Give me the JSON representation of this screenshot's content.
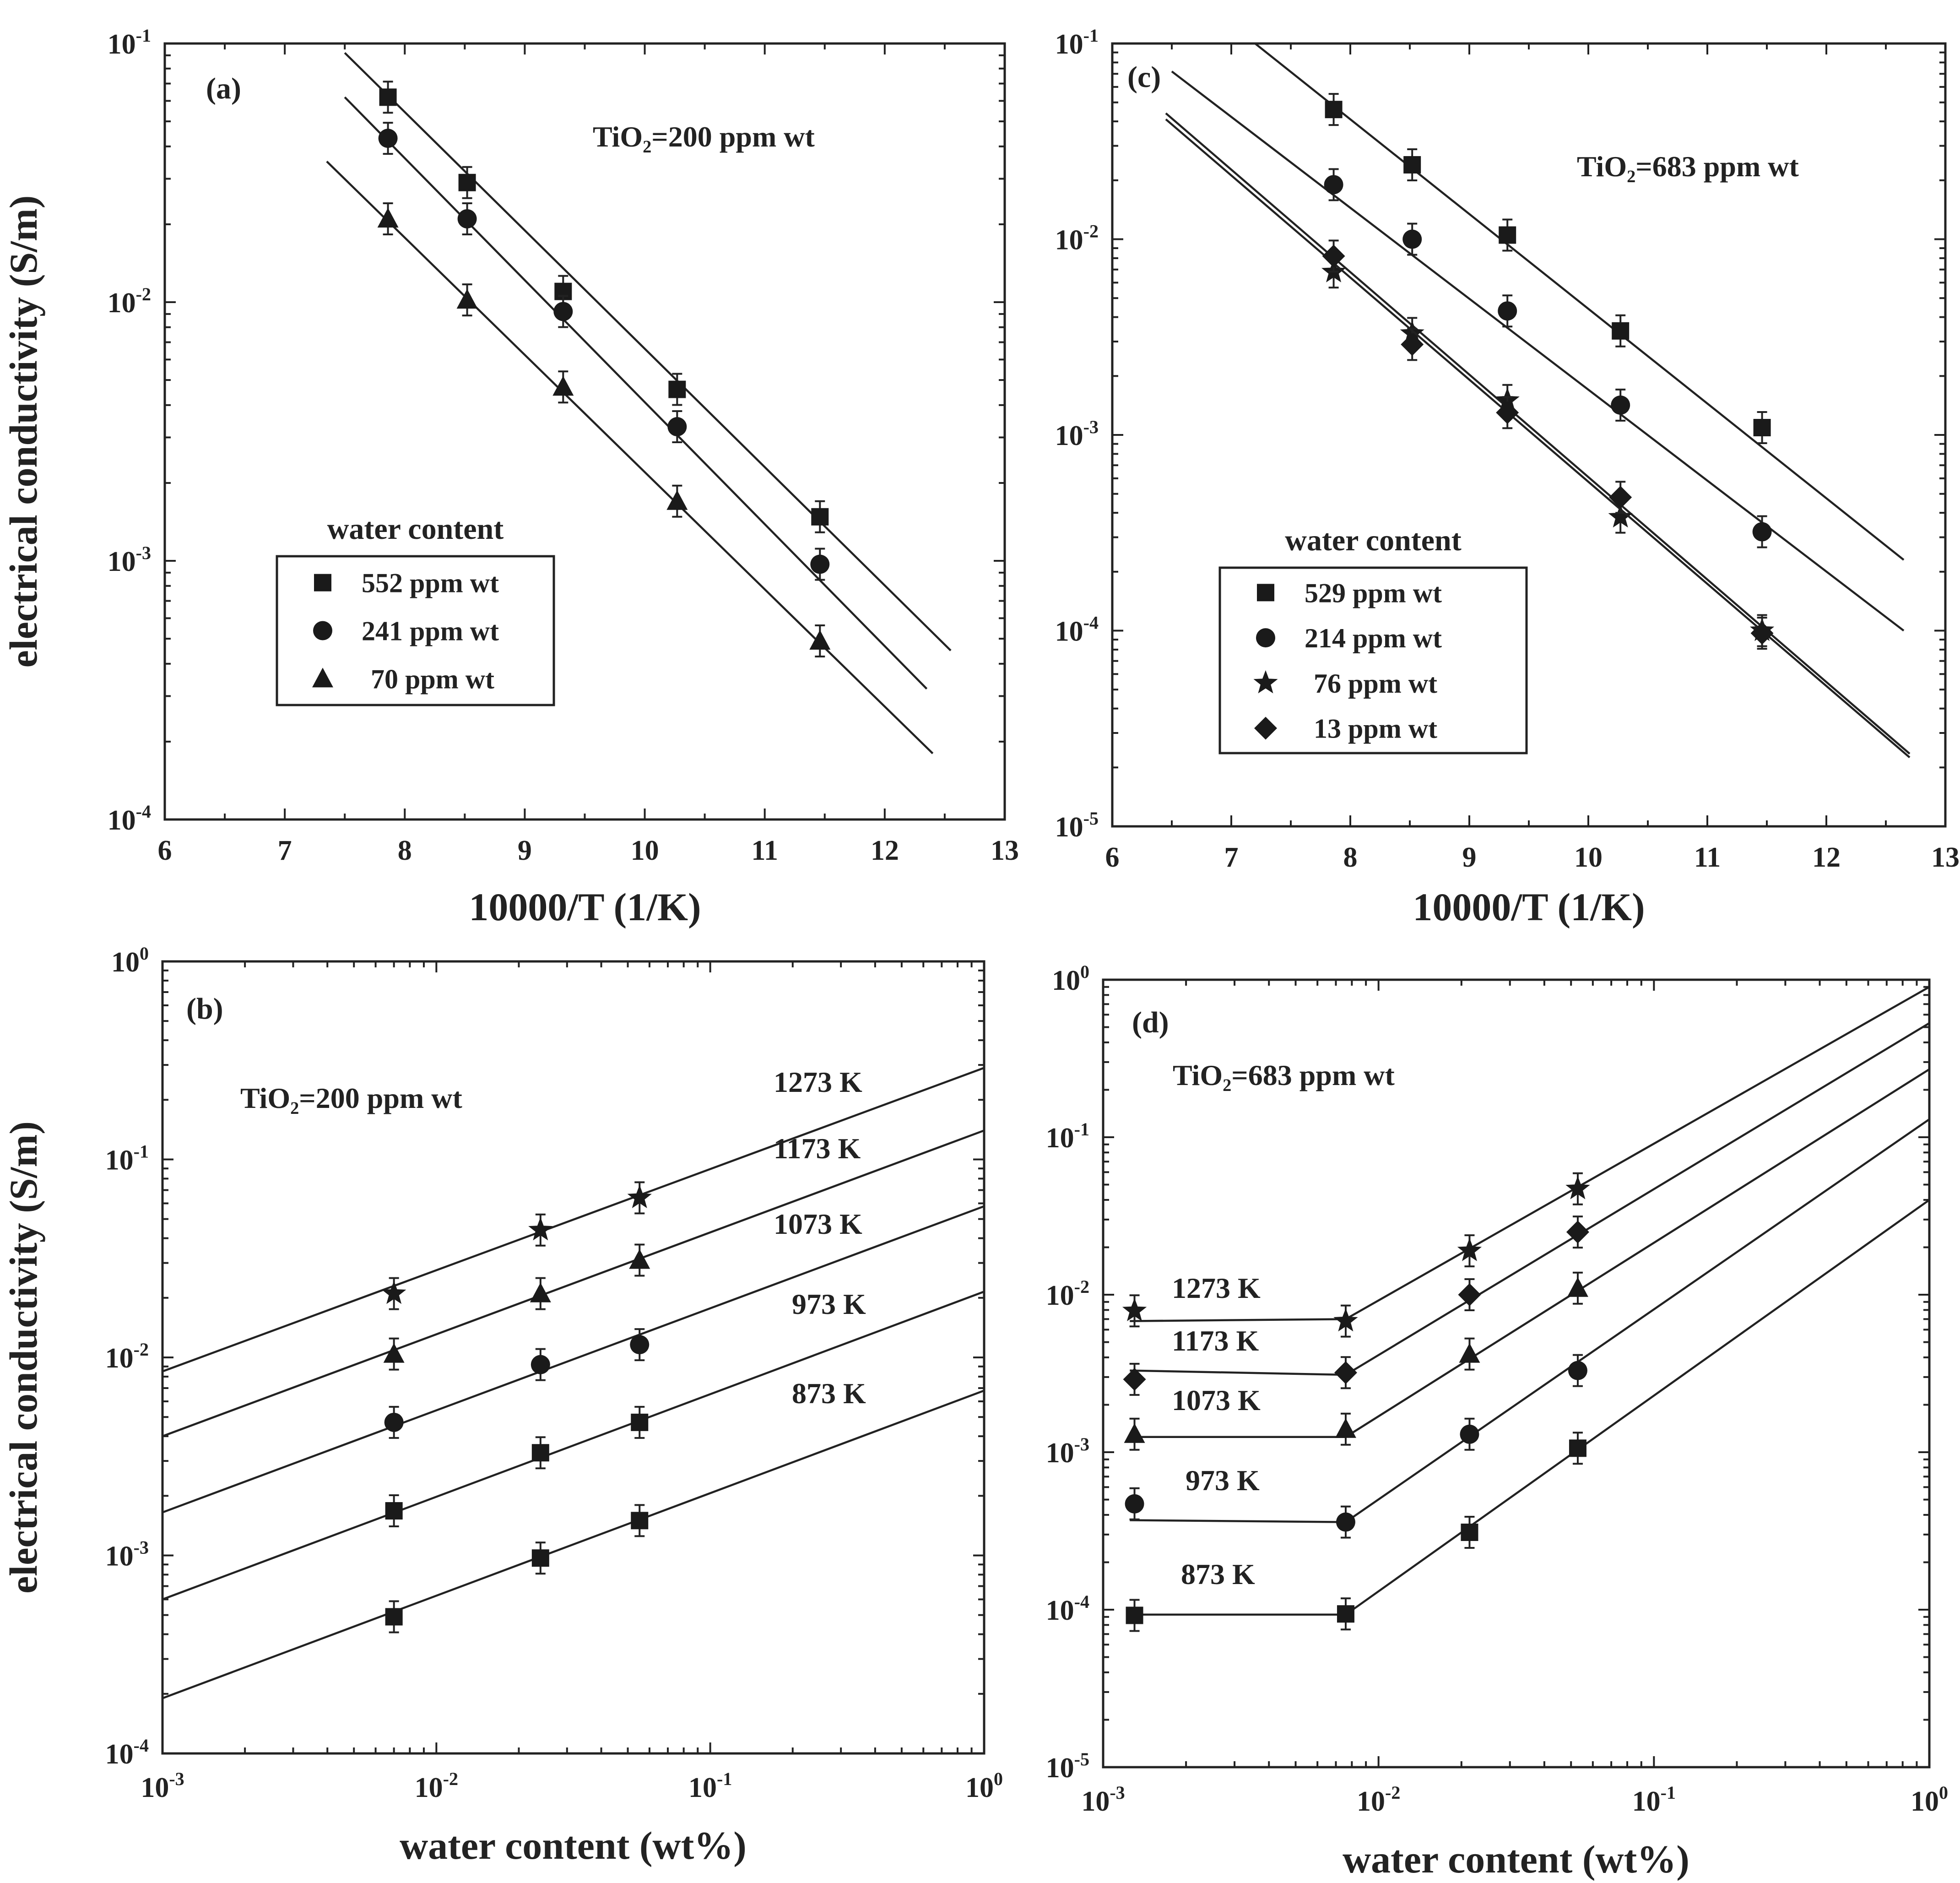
{
  "colors": {
    "ink": "#1a1a1a",
    "background": "#ffffff"
  },
  "y_axis_title": "electrical conductivity (S/m)",
  "chart_data": [
    {
      "id": "a",
      "panel_label": "(a)",
      "type": "scatter",
      "annotation": "TiO₂=200 ppm wt",
      "xlabel": "10000/T (1/K)",
      "ylabel": "electrical conductivity (S/m)",
      "x_scale": "linear",
      "y_scale": "log",
      "xlim": [
        6,
        13
      ],
      "ylim": [
        0.0001,
        0.1
      ],
      "x_ticks": [
        6,
        7,
        8,
        9,
        10,
        11,
        12,
        13
      ],
      "legend": {
        "title": "water content",
        "position": "lower-left"
      },
      "series": [
        {
          "name": "552 ppm wt",
          "marker": "square",
          "x": [
            7.86,
            8.52,
            9.32,
            10.27,
            11.46
          ],
          "y": [
            0.062,
            0.029,
            0.011,
            0.0046,
            0.00148
          ],
          "fit": {
            "x1": 7.5,
            "y1": 0.092,
            "x2": 12.55,
            "y2": 0.00045
          }
        },
        {
          "name": "241 ppm wt",
          "marker": "circle",
          "x": [
            7.86,
            8.52,
            9.32,
            10.27,
            11.46
          ],
          "y": [
            0.043,
            0.021,
            0.0092,
            0.0033,
            0.00097
          ],
          "fit": {
            "x1": 7.5,
            "y1": 0.062,
            "x2": 12.35,
            "y2": 0.00032
          }
        },
        {
          "name": "70 ppm wt",
          "marker": "triangle",
          "x": [
            7.86,
            8.52,
            9.32,
            10.27,
            11.46
          ],
          "y": [
            0.021,
            0.0102,
            0.0047,
            0.0017,
            0.00049
          ],
          "fit": {
            "x1": 7.35,
            "y1": 0.035,
            "x2": 12.4,
            "y2": 0.00018
          }
        }
      ]
    },
    {
      "id": "c",
      "panel_label": "(c)",
      "type": "scatter",
      "annotation": "TiO₂=683 ppm wt",
      "xlabel": "10000/T (1/K)",
      "ylabel": "",
      "x_scale": "linear",
      "y_scale": "log",
      "xlim": [
        6,
        13
      ],
      "ylim": [
        1e-05,
        0.1
      ],
      "x_ticks": [
        6,
        7,
        8,
        9,
        10,
        11,
        12,
        13
      ],
      "legend": {
        "title": "water content",
        "position": "lower-left"
      },
      "series": [
        {
          "name": "529 ppm wt",
          "marker": "square",
          "x": [
            7.86,
            8.52,
            9.32,
            10.27,
            11.46
          ],
          "y": [
            0.046,
            0.024,
            0.0105,
            0.0034,
            0.00109
          ],
          "fit": {
            "x1": 7.2,
            "y1": 0.1,
            "x2": 12.65,
            "y2": 0.00023
          }
        },
        {
          "name": "214 ppm wt",
          "marker": "circle",
          "x": [
            7.86,
            8.52,
            9.32,
            10.27,
            11.46
          ],
          "y": [
            0.019,
            0.01,
            0.0043,
            0.00142,
            0.00032
          ],
          "fit": {
            "x1": 6.5,
            "y1": 0.072,
            "x2": 12.65,
            "y2": 0.0001
          }
        },
        {
          "name": "76 ppm wt",
          "marker": "star",
          "x": [
            7.86,
            8.52,
            9.32,
            10.27,
            11.46
          ],
          "y": [
            0.0068,
            0.0033,
            0.0015,
            0.00038,
            0.0001
          ],
          "fit": {
            "x1": 6.45,
            "y1": 0.044,
            "x2": 12.7,
            "y2": 2.35e-05
          }
        },
        {
          "name": "13 ppm wt",
          "marker": "diamond",
          "x": [
            7.86,
            8.52,
            9.32,
            10.27,
            11.46
          ],
          "y": [
            0.0082,
            0.0029,
            0.0013,
            0.00048,
            9.7e-05
          ],
          "fit": {
            "x1": 6.45,
            "y1": 0.041,
            "x2": 12.7,
            "y2": 2.25e-05
          }
        }
      ]
    },
    {
      "id": "b",
      "panel_label": "(b)",
      "type": "scatter",
      "annotation": "TiO₂=200 ppm wt",
      "xlabel": "water content (wt%)",
      "ylabel": "electrical conductivity (S/m)",
      "x_scale": "log",
      "y_scale": "log",
      "xlim": [
        0.001,
        1
      ],
      "ylim": [
        0.0001,
        1
      ],
      "series": [
        {
          "name": "1273 K",
          "marker": "star",
          "x": [
            0.007,
            0.024,
            0.0552
          ],
          "y": [
            0.021,
            0.044,
            0.064
          ],
          "fit": {
            "x1": 0.001,
            "y1": 0.0085,
            "x2": 1,
            "y2": 0.29
          }
        },
        {
          "name": "1173 K",
          "marker": "triangle",
          "x": [
            0.007,
            0.024,
            0.0552
          ],
          "y": [
            0.0104,
            0.021,
            0.031
          ],
          "fit": {
            "x1": 0.001,
            "y1": 0.004,
            "x2": 1,
            "y2": 0.14
          }
        },
        {
          "name": "1073 K",
          "marker": "circle",
          "x": [
            0.007,
            0.024,
            0.0552
          ],
          "y": [
            0.0047,
            0.0092,
            0.0116
          ],
          "fit": {
            "x1": 0.001,
            "y1": 0.00165,
            "x2": 1,
            "y2": 0.058
          }
        },
        {
          "name": "973 K",
          "marker": "square",
          "x": [
            0.007,
            0.024,
            0.0552
          ],
          "y": [
            0.00168,
            0.0033,
            0.0047
          ],
          "fit": {
            "x1": 0.001,
            "y1": 0.0006,
            "x2": 1,
            "y2": 0.0215
          }
        },
        {
          "name": "873 K",
          "marker": "square",
          "x": [
            0.007,
            0.024,
            0.0552
          ],
          "y": [
            0.00049,
            0.00097,
            0.0015
          ],
          "fit": {
            "x1": 0.001,
            "y1": 0.00019,
            "x2": 1,
            "y2": 0.0068
          }
        }
      ]
    },
    {
      "id": "d",
      "panel_label": "(d)",
      "type": "scatter",
      "annotation": "TiO₂=683 ppm wt",
      "xlabel": "water content (wt%)",
      "ylabel": "",
      "x_scale": "log",
      "y_scale": "log",
      "xlim": [
        0.001,
        1
      ],
      "ylim": [
        1e-05,
        1
      ],
      "series": [
        {
          "name": "1273 K",
          "marker": "star",
          "x": [
            0.0013,
            0.0076,
            0.0214,
            0.0529
          ],
          "y": [
            0.0079,
            0.0068,
            0.019,
            0.047
          ],
          "fit_points": [
            [
              0.00125,
              0.0068
            ],
            [
              0.0076,
              0.007
            ],
            [
              1,
              0.9
            ]
          ]
        },
        {
          "name": "1173 K",
          "marker": "diamond",
          "x": [
            0.0013,
            0.0076,
            0.0214,
            0.0529
          ],
          "y": [
            0.0029,
            0.0032,
            0.01,
            0.025
          ],
          "fit_points": [
            [
              0.00125,
              0.0033
            ],
            [
              0.0076,
              0.0031
            ],
            [
              1,
              0.53
            ]
          ]
        },
        {
          "name": "1073 K",
          "marker": "triangle",
          "x": [
            0.0013,
            0.0076,
            0.0214,
            0.0529
          ],
          "y": [
            0.0013,
            0.0014,
            0.0042,
            0.011
          ],
          "fit_points": [
            [
              0.00125,
              0.00125
            ],
            [
              0.0076,
              0.00125
            ],
            [
              1,
              0.27
            ]
          ]
        },
        {
          "name": "973 K",
          "marker": "circle",
          "x": [
            0.0013,
            0.0076,
            0.0214,
            0.0529
          ],
          "y": [
            0.00047,
            0.00036,
            0.0013,
            0.0033
          ],
          "fit_points": [
            [
              0.00125,
              0.00037
            ],
            [
              0.0076,
              0.00036
            ],
            [
              1,
              0.13
            ]
          ]
        },
        {
          "name": "873 K",
          "marker": "square",
          "x": [
            0.0013,
            0.0076,
            0.0214,
            0.0529
          ],
          "y": [
            9.2e-05,
            9.4e-05,
            0.00031,
            0.00106
          ],
          "fit_points": [
            [
              0.00125,
              9.3e-05
            ],
            [
              0.0076,
              9.3e-05
            ],
            [
              1,
              0.04
            ]
          ]
        }
      ]
    }
  ]
}
